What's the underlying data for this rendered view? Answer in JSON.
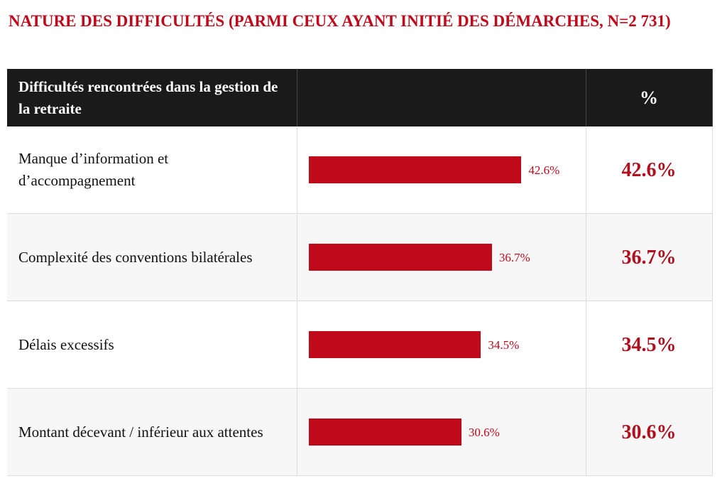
{
  "title": "NATURE DES DIFFICULTÉS (PARMI CEUX AYANT INITIÉ DES DÉMARCHES, N=2 731)",
  "table": {
    "header": {
      "label": "Difficultés rencontrées dans la gestion de la retraite",
      "percent": "%"
    },
    "rows": [
      {
        "label": "Manque d’information et d’accompagnement",
        "value": 42.6,
        "value_label": "42.6%"
      },
      {
        "label": "Complexité des conventions bilatérales",
        "value": 36.7,
        "value_label": "36.7%"
      },
      {
        "label": "Délais excessifs",
        "value": 34.5,
        "value_label": "34.5%"
      },
      {
        "label": "Montant décevant / inférieur aux attentes",
        "value": 30.6,
        "value_label": "30.6%"
      }
    ]
  },
  "bar_color": "#c0091b"
}
